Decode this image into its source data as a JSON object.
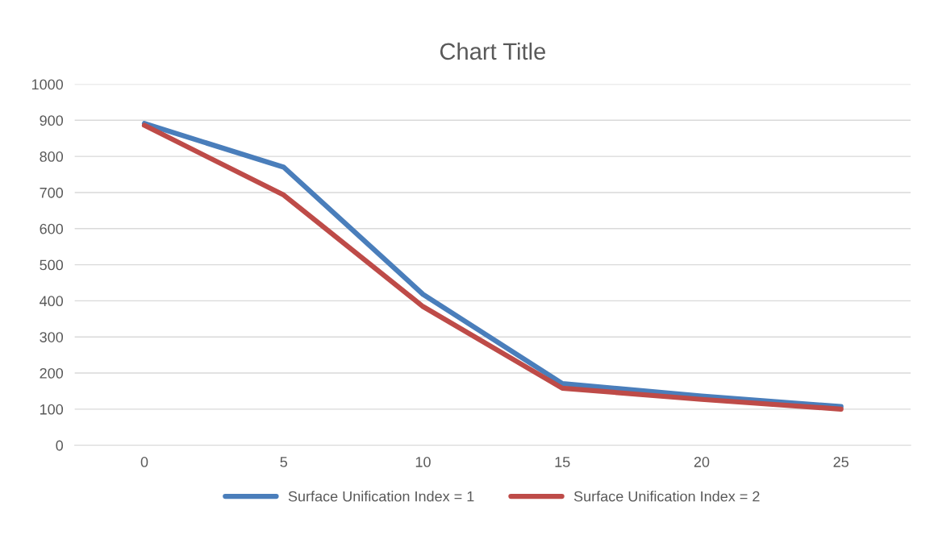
{
  "chart_data": {
    "type": "line",
    "title": "Chart Title",
    "categories": [
      "0",
      "5",
      "10",
      "15",
      "20",
      "25"
    ],
    "series": [
      {
        "name": "Surface Unification Index = 1",
        "color": "#4a7ebb",
        "values": [
          891,
          770,
          418,
          171,
          136,
          107
        ]
      },
      {
        "name": "Surface Unification Index = 2",
        "color": "#be4b48",
        "values": [
          886,
          693,
          384,
          158,
          127,
          100
        ]
      }
    ],
    "ylim": [
      0,
      1000
    ],
    "yticks": [
      0,
      100,
      200,
      300,
      400,
      500,
      600,
      700,
      800,
      900,
      1000
    ],
    "grid": "y",
    "legend": "bottom",
    "marker": "none",
    "line_style": "solid"
  }
}
